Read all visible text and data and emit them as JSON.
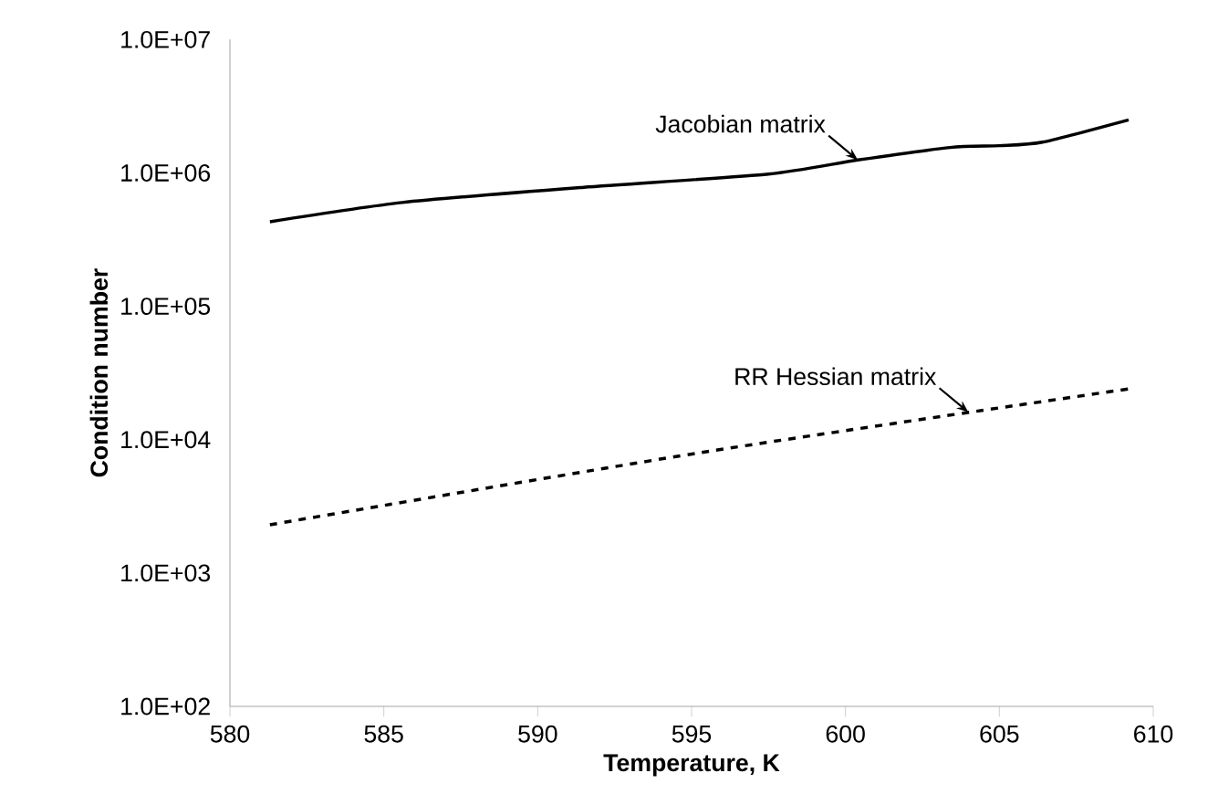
{
  "chart_data": {
    "type": "line",
    "xlabel": "Temperature, K",
    "ylabel": "Condition number",
    "log": "y",
    "marker": "none",
    "xlim": [
      580,
      610
    ],
    "xticks": [
      580,
      585,
      590,
      595,
      600,
      605,
      610
    ],
    "ylim": [
      100,
      10000000
    ],
    "yticks": [
      {
        "value": 100,
        "label": "1.0E+02"
      },
      {
        "value": 1000,
        "label": "1.0E+03"
      },
      {
        "value": 10000,
        "label": "1.0E+04"
      },
      {
        "value": 100000,
        "label": "1.0E+05"
      },
      {
        "value": 1000000,
        "label": "1.0E+06"
      },
      {
        "value": 10000000,
        "label": "1.0E+07"
      }
    ],
    "series": [
      {
        "color": "#000000",
        "line_style": "solid",
        "x": [
          581.3,
          585.6,
          591.5,
          597.5,
          600.4,
          603.4,
          605,
          606.4,
          609.2
        ],
        "values": [
          430000,
          600000,
          780000,
          980000,
          1250000,
          1550000,
          1600000,
          1700000,
          2500000
        ]
      },
      {
        "color": "#000000",
        "line_style": "dashed",
        "x": [
          581.3,
          595.3,
          609.2
        ],
        "values": [
          2300,
          8000,
          24000
        ]
      }
    ],
    "annotations": [
      {
        "text": "Jacobian matrix",
        "x": 600.4,
        "y": 1250000
      },
      {
        "text": "RR Hessian matrix",
        "x": 604,
        "y": 16000
      }
    ]
  }
}
